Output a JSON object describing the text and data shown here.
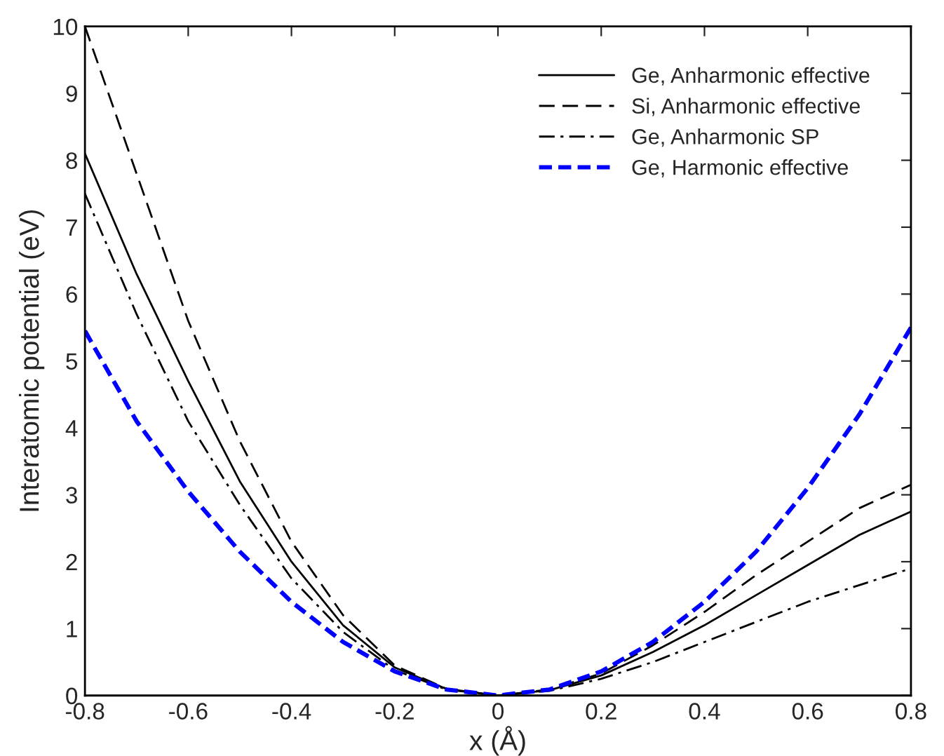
{
  "chart_data": {
    "type": "line",
    "xlabel": "x (Å)",
    "ylabel": "Interatomic potential (eV)",
    "x": [
      -0.8,
      -0.7,
      -0.6,
      -0.5,
      -0.4,
      -0.3,
      -0.2,
      -0.1,
      0,
      0.1,
      0.2,
      0.3,
      0.4,
      0.5,
      0.6,
      0.7,
      0.8
    ],
    "series": [
      {
        "name": "Ge, Anharmonic effective",
        "color": "#000000",
        "line_style": "solid",
        "values": [
          8.1,
          6.3,
          4.7,
          3.2,
          2.0,
          1.05,
          0.42,
          0.1,
          0,
          0.08,
          0.3,
          0.65,
          1.05,
          1.5,
          1.95,
          2.4,
          2.75
        ]
      },
      {
        "name": "Si, Anharmonic effective",
        "color": "#000000",
        "line_style": "dashed",
        "values": [
          10.0,
          7.8,
          5.6,
          3.8,
          2.3,
          1.2,
          0.45,
          0.1,
          0,
          0.09,
          0.33,
          0.75,
          1.25,
          1.8,
          2.3,
          2.8,
          3.15
        ]
      },
      {
        "name": "Ge, Anharmonic SP",
        "color": "#000000",
        "line_style": "dashdot",
        "values": [
          7.5,
          5.7,
          4.1,
          2.85,
          1.75,
          0.95,
          0.38,
          0.09,
          0,
          0.07,
          0.25,
          0.5,
          0.8,
          1.1,
          1.4,
          1.65,
          1.9
        ]
      },
      {
        "name": "Ge, Harmonic effective",
        "color": "#0000ff",
        "line_style": "dashed",
        "values": [
          5.45,
          4.1,
          3.05,
          2.15,
          1.4,
          0.8,
          0.36,
          0.09,
          0,
          0.09,
          0.36,
          0.8,
          1.4,
          2.15,
          3.1,
          4.2,
          5.5
        ]
      }
    ],
    "xlim": [
      -0.8,
      0.8
    ],
    "xticks": [
      -0.8,
      -0.6,
      -0.4,
      -0.2,
      0,
      0.2,
      0.4,
      0.6,
      0.8
    ],
    "ylim": [
      0,
      10
    ],
    "yticks": [
      0,
      1,
      2,
      3,
      4,
      5,
      6,
      7,
      8,
      9,
      10
    ],
    "grid": false,
    "legend": "top right"
  }
}
